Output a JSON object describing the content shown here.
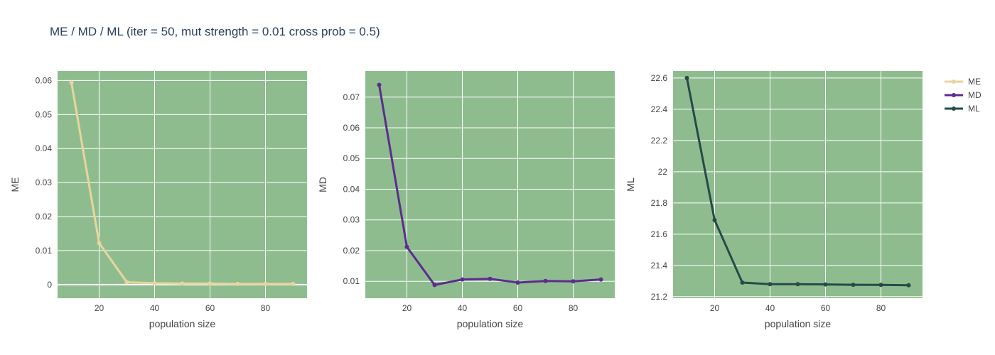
{
  "title": "ME / MD / ML (iter = 50, mut strength = 0.01 cross prob = 0.5)",
  "colors": {
    "plot_bg": "#8fbc8f",
    "grid": "#ffffff"
  },
  "legend": {
    "position": "top-right"
  },
  "chart_data": [
    {
      "type": "line",
      "xlabel": "population size",
      "ylabel": "ME",
      "xlim": [
        5,
        95
      ],
      "ylim": [
        -0.004,
        0.0628
      ],
      "xticks": [
        20,
        40,
        60,
        80
      ],
      "xtick_labels": [
        "20",
        "40",
        "60",
        "80"
      ],
      "yticks": [
        0,
        0.01,
        0.02,
        0.03,
        0.04,
        0.05,
        0.06
      ],
      "ytick_labels": [
        "0",
        "0.01",
        "0.02",
        "0.03",
        "0.04",
        "0.05",
        "0.06"
      ],
      "series": [
        {
          "name": "ME",
          "color": "#e8d59e",
          "x": [
            10,
            20,
            30,
            40,
            50,
            60,
            70,
            80,
            90
          ],
          "y": [
            0.0594,
            0.0122,
            0.0007,
            0.0004,
            0.0003,
            0.0003,
            0.0002,
            0.0002,
            0.0002
          ]
        }
      ]
    },
    {
      "type": "line",
      "xlabel": "population size",
      "ylabel": "MD",
      "xlim": [
        5,
        95
      ],
      "ylim": [
        0.0045,
        0.0785
      ],
      "xticks": [
        20,
        40,
        60,
        80
      ],
      "xtick_labels": [
        "20",
        "40",
        "60",
        "80"
      ],
      "yticks": [
        0.01,
        0.02,
        0.03,
        0.04,
        0.05,
        0.06,
        0.07
      ],
      "ytick_labels": [
        "0.01",
        "0.02",
        "0.03",
        "0.04",
        "0.05",
        "0.06",
        "0.07"
      ],
      "series": [
        {
          "name": "MD",
          "color": "#5b2c8f",
          "x": [
            10,
            20,
            30,
            40,
            50,
            60,
            70,
            80,
            90
          ],
          "y": [
            0.074,
            0.0212,
            0.0088,
            0.0106,
            0.0108,
            0.0096,
            0.0101,
            0.01,
            0.0106
          ]
        }
      ]
    },
    {
      "type": "line",
      "xlabel": "population size",
      "ylabel": "ML",
      "xlim": [
        5,
        95
      ],
      "ylim": [
        21.19,
        22.645
      ],
      "xticks": [
        20,
        40,
        60,
        80
      ],
      "xtick_labels": [
        "20",
        "40",
        "60",
        "80"
      ],
      "yticks": [
        21.2,
        21.4,
        21.6,
        21.8,
        22,
        22.2,
        22.4,
        22.6
      ],
      "ytick_labels": [
        "21.2",
        "21.4",
        "21.6",
        "21.8",
        "22",
        "22.2",
        "22.4",
        "22.6"
      ],
      "series": [
        {
          "name": "ML",
          "color": "#264a48",
          "x": [
            10,
            20,
            30,
            40,
            50,
            60,
            70,
            80,
            90
          ],
          "y": [
            22.6,
            21.69,
            21.29,
            21.28,
            21.28,
            21.278,
            21.276,
            21.275,
            21.273
          ]
        }
      ]
    }
  ]
}
